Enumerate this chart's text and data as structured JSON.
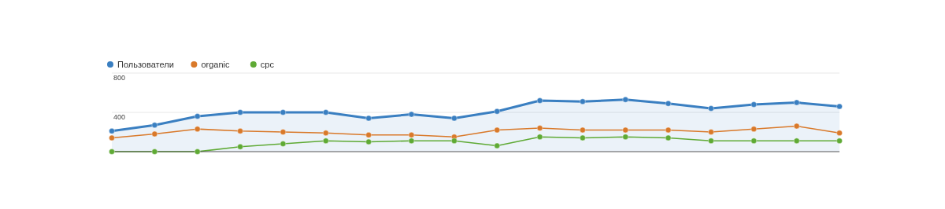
{
  "chart_data": {
    "type": "line",
    "categories": [
      null,
      null,
      null,
      null,
      null,
      null,
      null,
      null,
      null,
      null,
      null,
      null,
      null,
      null,
      null,
      null,
      null,
      null
    ],
    "series": [
      {
        "name": "Пользователи",
        "type": "area",
        "color": "#3a7fc1",
        "values": [
          210,
          270,
          360,
          400,
          400,
          400,
          340,
          380,
          340,
          410,
          520,
          510,
          530,
          490,
          440,
          480,
          500,
          460
        ]
      },
      {
        "name": "organic",
        "color": "#d9792a",
        "values": [
          140,
          180,
          230,
          210,
          200,
          190,
          170,
          170,
          150,
          220,
          240,
          220,
          220,
          220,
          200,
          230,
          260,
          190
        ]
      },
      {
        "name": "cpc",
        "color": "#5faa35",
        "values": [
          0,
          0,
          0,
          50,
          80,
          110,
          100,
          110,
          110,
          60,
          150,
          140,
          150,
          140,
          110,
          110,
          110,
          110
        ]
      }
    ],
    "ylim": [
      0,
      800
    ],
    "yticks": [
      400,
      800
    ],
    "grid": "y",
    "legend": "top left",
    "marker": "circle"
  }
}
